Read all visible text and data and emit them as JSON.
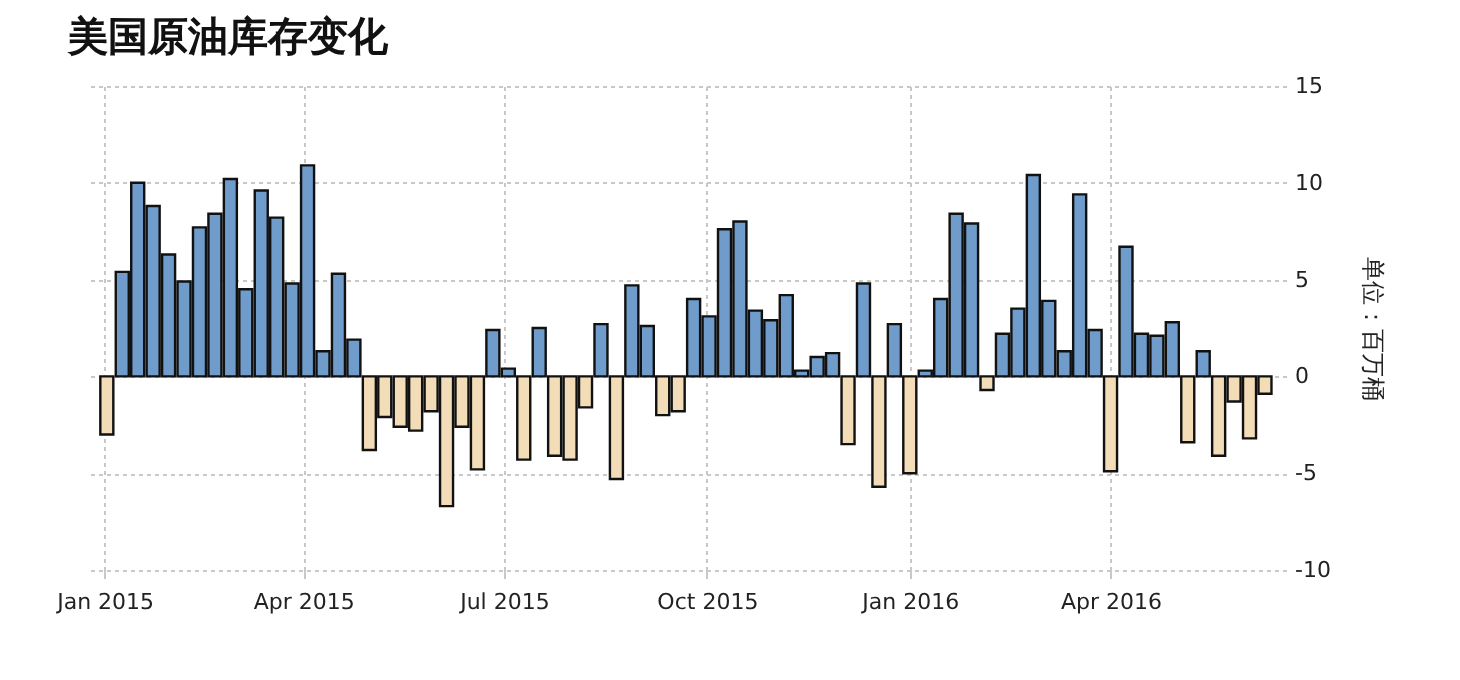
{
  "chart_data": {
    "type": "bar",
    "title": "美国原油库存变化",
    "ylabel": "单位：百万桶",
    "x": [
      "2015-01-02",
      "2015-01-09",
      "2015-01-16",
      "2015-01-23",
      "2015-01-30",
      "2015-02-06",
      "2015-02-13",
      "2015-02-20",
      "2015-02-27",
      "2015-03-06",
      "2015-03-13",
      "2015-03-20",
      "2015-03-27",
      "2015-04-03",
      "2015-04-10",
      "2015-04-17",
      "2015-04-24",
      "2015-05-01",
      "2015-05-08",
      "2015-05-15",
      "2015-05-22",
      "2015-05-29",
      "2015-06-05",
      "2015-06-12",
      "2015-06-19",
      "2015-06-26",
      "2015-07-03",
      "2015-07-10",
      "2015-07-17",
      "2015-07-24",
      "2015-07-31",
      "2015-08-07",
      "2015-08-14",
      "2015-08-21",
      "2015-08-28",
      "2015-09-04",
      "2015-09-11",
      "2015-09-18",
      "2015-09-25",
      "2015-10-02",
      "2015-10-09",
      "2015-10-16",
      "2015-10-23",
      "2015-10-30",
      "2015-11-06",
      "2015-11-13",
      "2015-11-20",
      "2015-11-27",
      "2015-12-04",
      "2015-12-11",
      "2015-12-18",
      "2015-12-25",
      "2016-01-01",
      "2016-01-08",
      "2016-01-15",
      "2016-01-22",
      "2016-01-29",
      "2016-02-05",
      "2016-02-12",
      "2016-02-19",
      "2016-02-26",
      "2016-03-04",
      "2016-03-11",
      "2016-03-18",
      "2016-03-25",
      "2016-04-01",
      "2016-04-08",
      "2016-04-15",
      "2016-04-22",
      "2016-04-29",
      "2016-05-06",
      "2016-05-13",
      "2016-05-20",
      "2016-05-27",
      "2016-06-03",
      "2016-06-10"
    ],
    "values": [
      -3.0,
      5.4,
      10.0,
      8.8,
      6.3,
      4.9,
      7.7,
      8.4,
      10.2,
      4.5,
      9.6,
      8.2,
      4.8,
      10.9,
      1.3,
      5.3,
      1.9,
      -3.8,
      -2.1,
      -2.6,
      -2.8,
      -1.8,
      -6.7,
      -2.6,
      -4.8,
      2.4,
      0.4,
      -4.3,
      2.5,
      -4.1,
      -4.3,
      -1.6,
      2.7,
      -5.3,
      4.7,
      2.6,
      -2.0,
      -1.8,
      4.0,
      3.1,
      7.6,
      8.0,
      3.4,
      2.9,
      4.2,
      0.3,
      1.0,
      1.2,
      -3.5,
      4.8,
      -5.7,
      2.7,
      -5.0,
      0.3,
      4.0,
      8.4,
      7.9,
      -0.7,
      2.2,
      3.5,
      10.4,
      3.9,
      1.3,
      9.4,
      2.4,
      -4.9,
      6.7,
      2.2,
      2.1,
      2.8,
      -3.4,
      1.3,
      -4.1,
      -1.3,
      -3.2,
      -0.9
    ],
    "colors": [
      "#f3dcb8",
      "#6f9ccb",
      "#6f9ccb",
      "#6f9ccb",
      "#6f9ccb",
      "#6f9ccb",
      "#6f9ccb",
      "#6f9ccb",
      "#6f9ccb",
      "#6f9ccb",
      "#6f9ccb",
      "#6f9ccb",
      "#6f9ccb",
      "#6f9ccb",
      "#6f9ccb",
      "#6f9ccb",
      "#6f9ccb",
      "#f3dcb8",
      "#f3dcb8",
      "#f3dcb8",
      "#f3dcb8",
      "#f3dcb8",
      "#f3dcb8",
      "#f3dcb8",
      "#f3dcb8",
      "#6f9ccb",
      "#6f9ccb",
      "#f3dcb8",
      "#6f9ccb",
      "#f3dcb8",
      "#f3dcb8",
      "#f3dcb8",
      "#6f9ccb",
      "#f3dcb8",
      "#6f9ccb",
      "#6f9ccb",
      "#f3dcb8",
      "#f3dcb8",
      "#6f9ccb",
      "#6f9ccb",
      "#6f9ccb",
      "#6f9ccb",
      "#6f9ccb",
      "#6f9ccb",
      "#6f9ccb",
      "#6f9ccb",
      "#6f9ccb",
      "#6f9ccb",
      "#f3dcb8",
      "#6f9ccb",
      "#f3dcb8",
      "#6f9ccb",
      "#f3dcb8",
      "#6f9ccb",
      "#6f9ccb",
      "#6f9ccb",
      "#6f9ccb",
      "#f3dcb8",
      "#6f9ccb",
      "#6f9ccb",
      "#6f9ccb",
      "#6f9ccb",
      "#6f9ccb",
      "#6f9ccb",
      "#6f9ccb",
      "#f3dcb8",
      "#6f9ccb",
      "#6f9ccb",
      "#6f9ccb",
      "#6f9ccb",
      "#f3dcb8",
      "#6f9ccb",
      "#f3dcb8",
      "#f3dcb8",
      "#f3dcb8",
      "#f3dcb8"
    ],
    "xlim": [
      "2014-12-29",
      "2016-06-15"
    ],
    "xticks": [
      {
        "value": "2015-01-01",
        "label": "Jan 2015"
      },
      {
        "value": "2015-04-01",
        "label": "Apr 2015"
      },
      {
        "value": "2015-07-01",
        "label": "Jul 2015"
      },
      {
        "value": "2015-10-01",
        "label": "Oct 2015"
      },
      {
        "value": "2016-01-01",
        "label": "Jan 2016"
      },
      {
        "value": "2016-04-01",
        "label": "Apr 2016"
      }
    ],
    "ylim": [
      -10,
      15
    ],
    "yticks": [
      -10,
      -5,
      0,
      5,
      10,
      15
    ],
    "grid": true
  }
}
